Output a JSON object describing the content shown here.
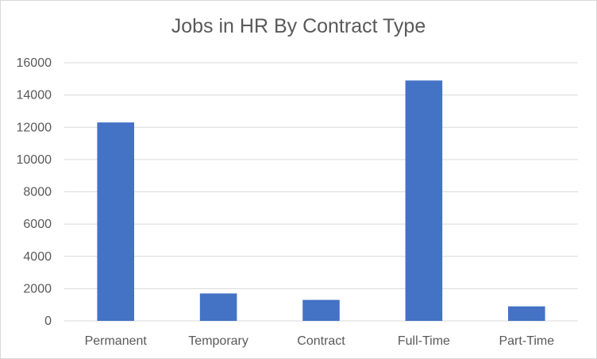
{
  "chart_data": {
    "type": "bar",
    "title": "Jobs in HR By Contract Type",
    "xlabel": "",
    "ylabel": "",
    "categories": [
      "Permanent",
      "Temporary",
      "Contract",
      "Full-Time",
      "Part-Time"
    ],
    "values": [
      12300,
      1700,
      1300,
      14900,
      900
    ],
    "ylim": [
      0,
      16000
    ],
    "yticks": [
      "0",
      "2000",
      "4000",
      "6000",
      "8000",
      "10000",
      "12000",
      "14000",
      "16000"
    ],
    "grid": true,
    "legend": "none",
    "bar_color": "#4472c4"
  }
}
